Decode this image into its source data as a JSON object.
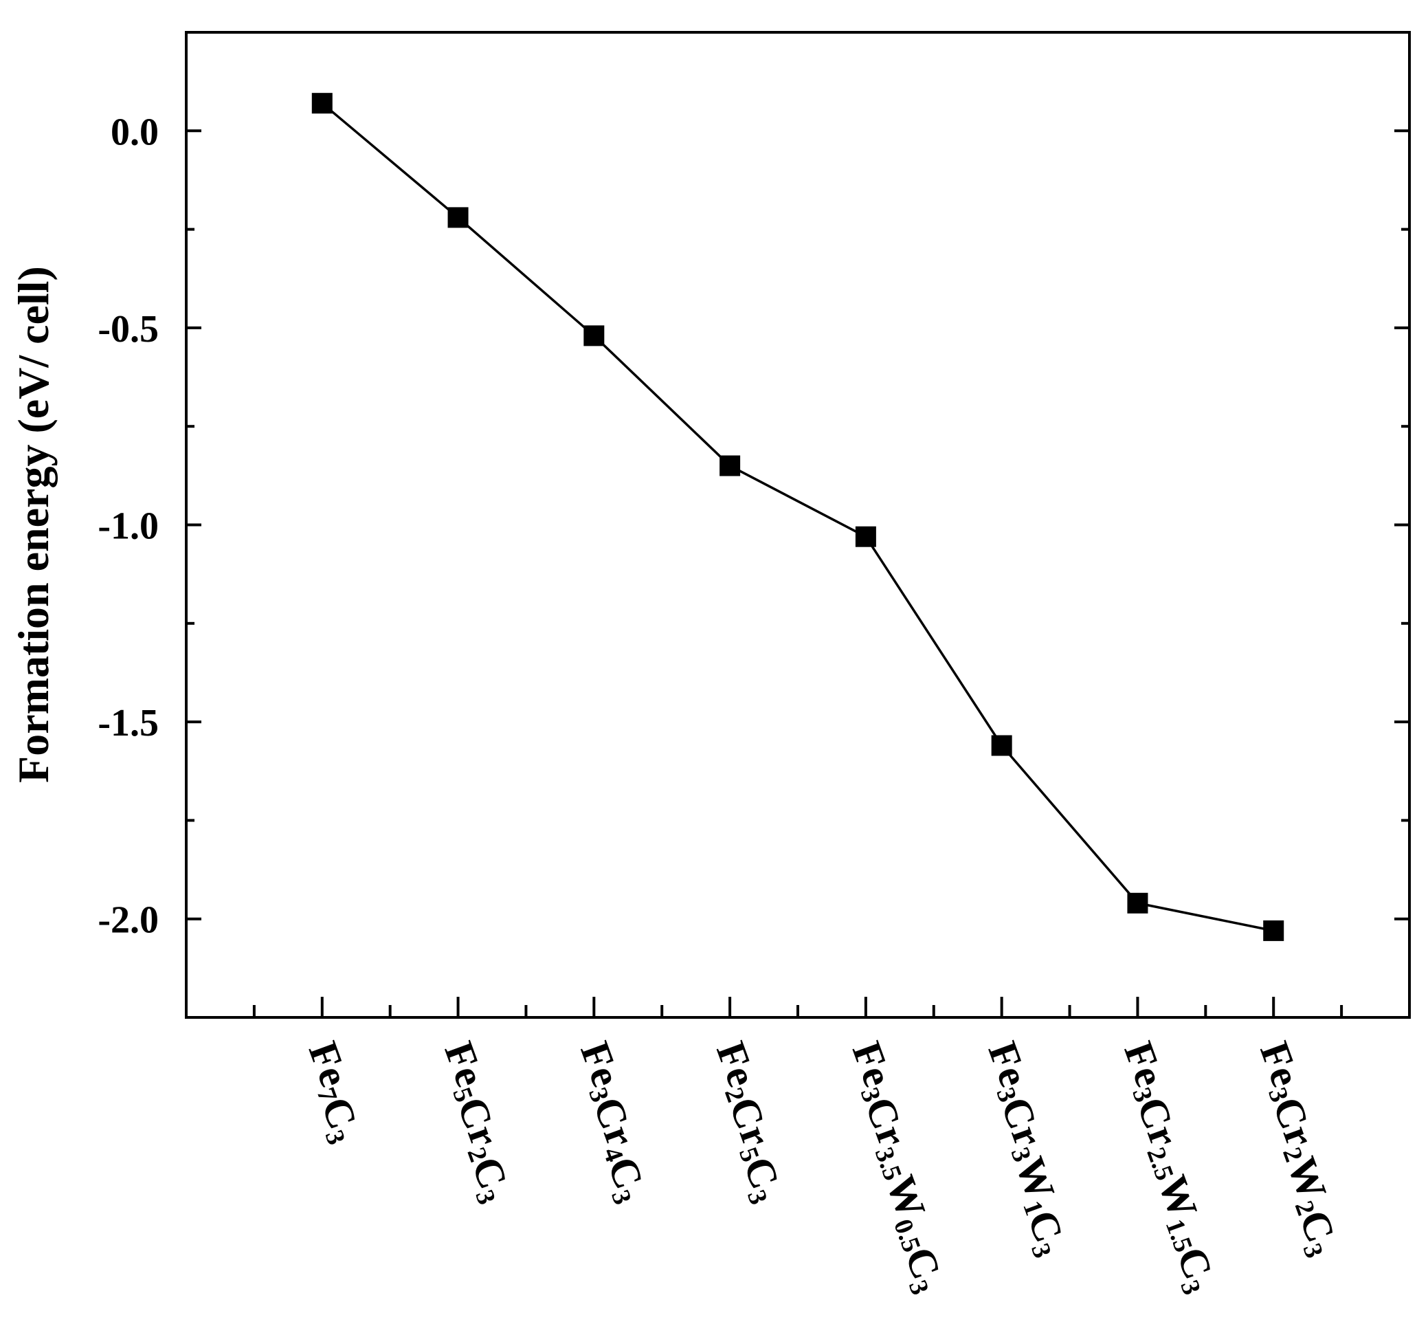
{
  "chart_data": {
    "type": "line",
    "title": "",
    "xlabel": "",
    "ylabel": "Formation energy (eV/ cell)",
    "categories": [
      "Fe7C3",
      "Fe5Cr2C3",
      "Fe3Cr4C3",
      "Fe2Cr5C3",
      "Fe3Cr3.5W0.5C3",
      "Fe3Cr3W1C3",
      "Fe3Cr2.5W1.5C3",
      "Fe3Cr2W2C3"
    ],
    "values": [
      0.07,
      -0.22,
      -0.52,
      -0.85,
      -1.03,
      -1.56,
      -1.96,
      -2.03
    ],
    "ylim": [
      -2.25,
      0.25
    ],
    "yticks": [
      0.0,
      -0.5,
      -1.0,
      -1.5,
      -2.0
    ],
    "ytick_labels": [
      "0.0",
      "-0.5",
      "-1.0",
      "-1.5",
      "-2.0"
    ],
    "marker": "square",
    "grid": false,
    "legend": "none",
    "color": "#000000"
  }
}
